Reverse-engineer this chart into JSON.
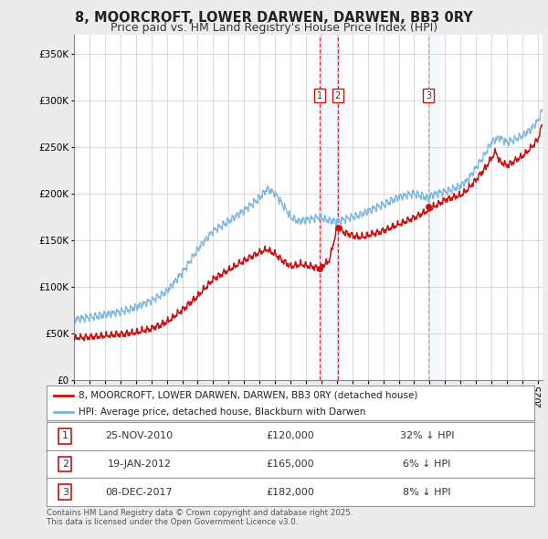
{
  "title": "8, MOORCROFT, LOWER DARWEN, DARWEN, BB3 0RY",
  "subtitle": "Price paid vs. HM Land Registry's House Price Index (HPI)",
  "ylim": [
    0,
    370000
  ],
  "yticks": [
    0,
    50000,
    100000,
    150000,
    200000,
    250000,
    300000,
    350000
  ],
  "legend_line1": "8, MOORCROFT, LOWER DARWEN, DARWEN, BB3 0RY (detached house)",
  "legend_line2": "HPI: Average price, detached house, Blackburn with Darwen",
  "sales": [
    {
      "label": "1",
      "date": "25-NOV-2010",
      "price": 120000,
      "pct": "32% ↓ HPI",
      "year": 2010.9
    },
    {
      "label": "2",
      "date": "19-JAN-2012",
      "price": 165000,
      "pct": "6% ↓ HPI",
      "year": 2012.05
    },
    {
      "label": "3",
      "date": "08-DEC-2017",
      "price": 182000,
      "pct": "8% ↓ HPI",
      "year": 2017.92
    }
  ],
  "footer": "Contains HM Land Registry data © Crown copyright and database right 2025.\nThis data is licensed under the Open Government Licence v3.0.",
  "hpi_color": "#7ab4e0",
  "sale_color": "#cc1111",
  "bg_color": "#ececec",
  "plot_bg": "#ffffff",
  "title_fontsize": 10.5,
  "subtitle_fontsize": 9.0,
  "xmin": 1995,
  "xmax": 2025.3
}
